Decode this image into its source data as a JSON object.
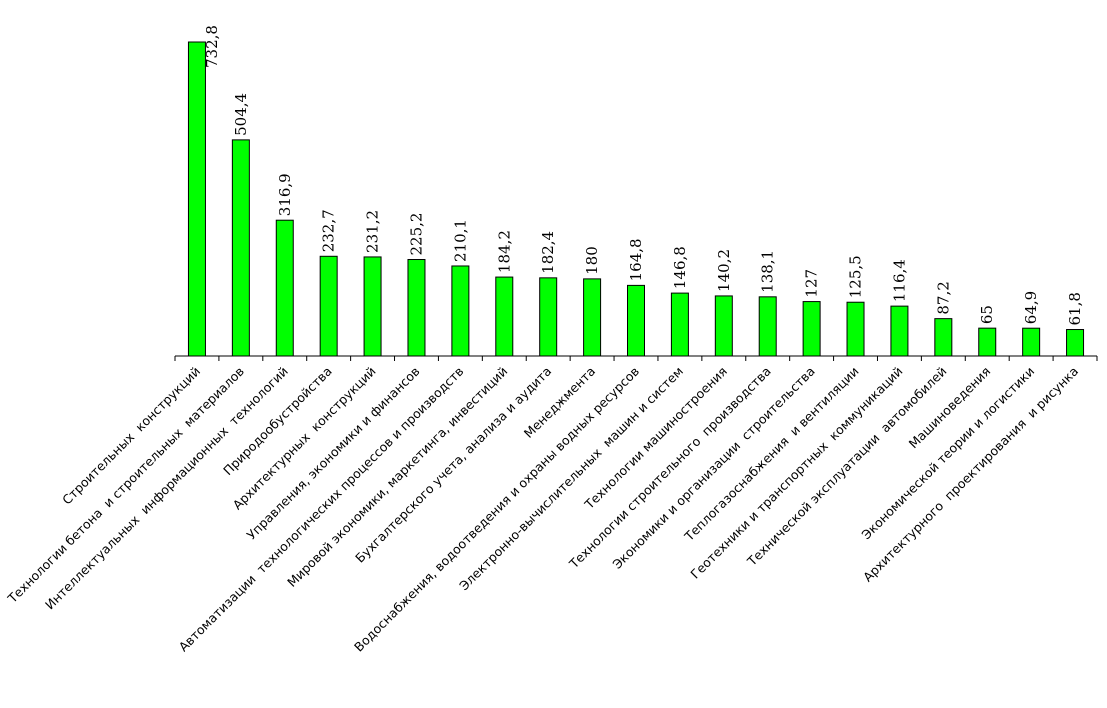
{
  "chart_data": {
    "type": "bar",
    "categories": [
      "Строительных  конструкций",
      "Технологии бетона  и строительных  материалов",
      "Интеллектуальных  информационных  технологий",
      "Природообустройства",
      "Архитектурных  конструкций",
      "Управления, экономики и финансов",
      "Автоматизации  технологических процессов и производств",
      "Мировой экономики, маркетинга, инвестиций",
      "Бухгалтерского учета, анализа и аудита",
      "Менеджмента",
      "Водоснабжения, водоотведения и охраны водных ресурсов",
      "Электронно-вычислительных  машин и систем",
      "Технологии машиностроения",
      "Технологии строительного  производства",
      "Экономики и организации  строительства",
      "Теплогазоснабжения  и вентиляции",
      "Геотехники и транспортных  коммуникаций",
      "Технической эксплуатации  автомобилей",
      "Машиноведения",
      "Экономической теории и логистики",
      "Архитектурного  проектирования  и рисунка"
    ],
    "values": [
      732.8,
      504.4,
      316.9,
      232.7,
      231.2,
      225.2,
      210.1,
      184.2,
      182.4,
      180,
      164.8,
      146.8,
      140.2,
      138.1,
      127,
      125.5,
      116.4,
      87.2,
      65,
      64.9,
      61.8
    ],
    "value_labels": [
      "732,8",
      "504,4",
      "316,9",
      "232,7",
      "231,2",
      "225,2",
      "210,1",
      "184,2",
      "182,4",
      "180",
      "164,8",
      "146,8",
      "140,2",
      "138,1",
      "127",
      "125,5",
      "116,4",
      "87,2",
      "65",
      "64,9",
      "61,8"
    ],
    "ylim": [
      0,
      732.8
    ],
    "grid": false,
    "legend": "none",
    "colors": {
      "bar": "#00ff00",
      "outline": "#000000"
    }
  }
}
